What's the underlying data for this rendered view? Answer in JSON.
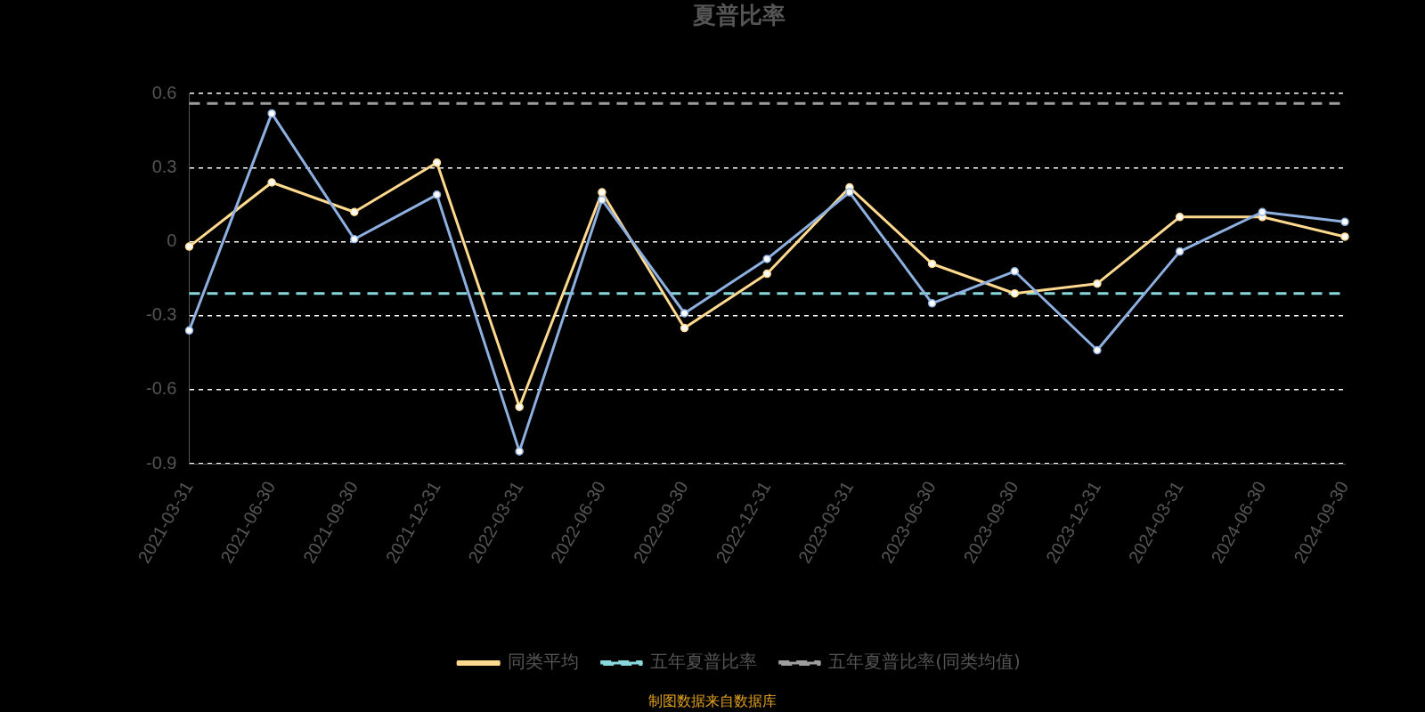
{
  "chart_data": {
    "type": "line",
    "title": "夏普比率",
    "categories": [
      "2021-03-31",
      "2021-06-30",
      "2021-09-30",
      "2021-12-31",
      "2022-03-31",
      "2022-06-30",
      "2022-09-30",
      "2022-12-31",
      "2023-03-31",
      "2023-06-30",
      "2023-09-30",
      "2023-12-31",
      "2024-03-31",
      "2024-06-30",
      "2024-09-30"
    ],
    "series": [
      {
        "color": "#8eb0e0",
        "marker": "circle",
        "values": [
          -0.36,
          0.52,
          0.01,
          0.19,
          -0.85,
          0.17,
          -0.29,
          -0.07,
          0.2,
          -0.25,
          -0.12,
          -0.44,
          -0.04,
          0.12,
          0.08
        ]
      },
      {
        "name": "同类平均",
        "color": "#ffd98e",
        "marker": "circle",
        "values": [
          -0.02,
          0.24,
          0.12,
          0.32,
          -0.67,
          0.2,
          -0.35,
          -0.13,
          0.22,
          -0.09,
          -0.21,
          -0.17,
          0.1,
          0.1,
          0.02
        ]
      },
      {
        "name": "五年夏普比率",
        "color": "#88d8dc",
        "marker": "none",
        "line_style": "dashed",
        "values": [
          -0.21,
          -0.21,
          -0.21,
          -0.21,
          -0.21,
          -0.21,
          -0.21,
          -0.21,
          -0.21,
          -0.21,
          -0.21,
          -0.21,
          -0.21,
          -0.21,
          -0.21
        ]
      },
      {
        "name": "五年夏普比率(同类均值)",
        "color": "#9e9e9e",
        "marker": "none",
        "line_style": "dashed",
        "values": [
          0.56,
          0.56,
          0.56,
          0.56,
          0.56,
          0.56,
          0.56,
          0.56,
          0.56,
          0.56,
          0.56,
          0.56,
          0.56,
          0.56,
          0.56
        ]
      }
    ],
    "ylim": [
      -0.9,
      0.6
    ],
    "yticks": [
      -0.9,
      -0.6,
      -0.3,
      0,
      0.3,
      0.6
    ],
    "grid": "y",
    "legend": "bottom",
    "annotations": [
      "制图数据来自数据库"
    ]
  }
}
